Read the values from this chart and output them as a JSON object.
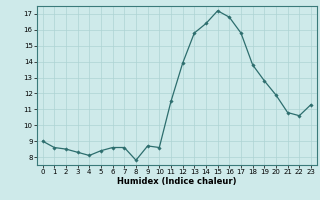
{
  "x": [
    0,
    1,
    2,
    3,
    4,
    5,
    6,
    7,
    8,
    9,
    10,
    11,
    12,
    13,
    14,
    15,
    16,
    17,
    18,
    19,
    20,
    21,
    22,
    23
  ],
  "y": [
    9.0,
    8.6,
    8.5,
    8.3,
    8.1,
    8.4,
    8.6,
    8.6,
    7.8,
    8.7,
    8.6,
    11.5,
    13.9,
    15.8,
    16.4,
    17.2,
    16.8,
    15.8,
    13.8,
    12.8,
    11.9,
    10.8,
    10.6,
    11.3
  ],
  "line_color": "#2d6e6e",
  "marker": "D",
  "marker_size": 1.8,
  "linewidth": 0.9,
  "bg_color": "#ceeaea",
  "grid_color": "#aed4d4",
  "xlabel": "Humidex (Indice chaleur)",
  "xlabel_fontsize": 6,
  "xlim": [
    -0.5,
    23.5
  ],
  "ylim": [
    7.5,
    17.5
  ],
  "yticks": [
    8,
    9,
    10,
    11,
    12,
    13,
    14,
    15,
    16,
    17
  ],
  "xticks": [
    0,
    1,
    2,
    3,
    4,
    5,
    6,
    7,
    8,
    9,
    10,
    11,
    12,
    13,
    14,
    15,
    16,
    17,
    18,
    19,
    20,
    21,
    22,
    23
  ],
  "tick_fontsize": 5.0
}
